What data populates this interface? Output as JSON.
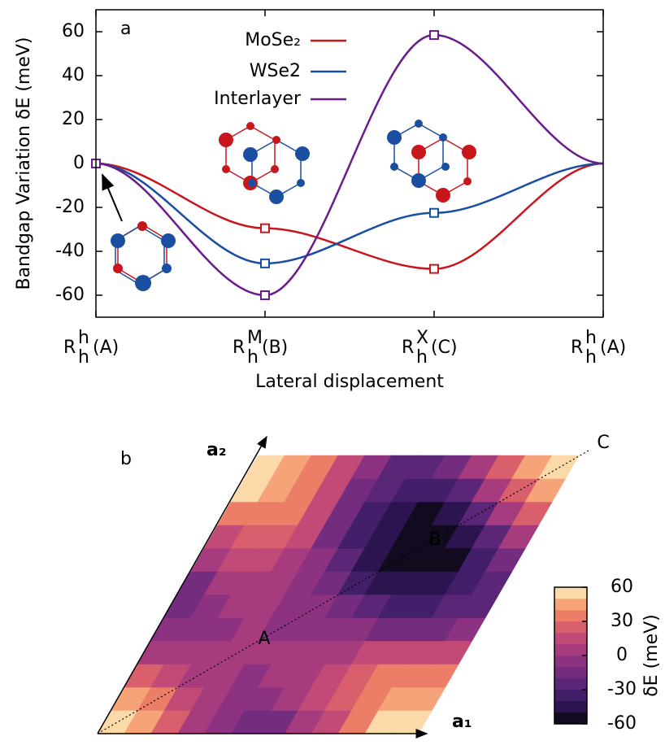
{
  "chart_data": [
    {
      "type": "line",
      "panel": "a",
      "ylabel": "Bandgap Variation δE (meV)",
      "xlabel": "Lateral displacement",
      "categories": [
        {
          "base": "R",
          "sup": "h",
          "sub": "h",
          "tail": "(A)"
        },
        {
          "base": "R",
          "sup": "M",
          "sub": "h",
          "tail": "(B)"
        },
        {
          "base": "R",
          "sup": "X",
          "sub": "h",
          "tail": "(C)"
        },
        {
          "base": "R",
          "sup": "h",
          "sub": "h",
          "tail": "(A)"
        }
      ],
      "series": [
        {
          "name": "MoSe₂",
          "color": "#c8161d",
          "values": [
            0,
            -29.5,
            -48,
            0
          ]
        },
        {
          "name": "WSe2",
          "color": "#1a4ea0",
          "values": [
            0,
            -45.5,
            -22.5,
            0
          ]
        },
        {
          "name": "Interlayer",
          "color": "#6a1b8c",
          "values": [
            0,
            -60,
            58.5,
            0
          ]
        }
      ],
      "ylim": [
        -70,
        70
      ],
      "yticks": [
        -60,
        -40,
        -20,
        0,
        20,
        40,
        60
      ],
      "legend": "top-center"
    },
    {
      "type": "contour",
      "panel": "b",
      "axis_labels": [
        "a₁",
        "a₂"
      ],
      "point_labels": [
        "A",
        "B",
        "C"
      ],
      "colorbar_label": "δE (meV)",
      "levels": [
        -60,
        -50,
        -40,
        -30,
        -20,
        -10,
        0,
        10,
        20,
        30,
        40,
        50,
        60
      ],
      "colors": [
        "#120a1f",
        "#2b1450",
        "#431f6a",
        "#5b2677",
        "#732c7e",
        "#8c3280",
        "#a63c7e",
        "#c24a77",
        "#da5f6d",
        "#ec7e67",
        "#f6a379",
        "#fbd9a8"
      ],
      "cticks": [
        -60,
        -30,
        0,
        30,
        60
      ],
      "z": [
        [
          55,
          44,
          27,
          8,
          -7,
          -14,
          -11,
          0,
          17,
          36,
          51,
          58
        ],
        [
          44,
          33,
          18,
          5,
          -4,
          -5,
          0,
          11,
          26,
          39,
          48,
          49
        ],
        [
          27,
          18,
          9,
          2,
          -1,
          0,
          5,
          14,
          23,
          30,
          33,
          32
        ],
        [
          8,
          5,
          2,
          1,
          0,
          1,
          4,
          7,
          10,
          11,
          12,
          11
        ],
        [
          -7,
          -4,
          -1,
          0,
          -1,
          -2,
          -5,
          -8,
          -11,
          -12,
          -11,
          -10
        ],
        [
          -14,
          -5,
          0,
          1,
          -2,
          -9,
          -18,
          -27,
          -32,
          -33,
          -30,
          -23
        ],
        [
          -11,
          0,
          5,
          4,
          -5,
          -18,
          -33,
          -44,
          -49,
          -48,
          -39,
          -26
        ],
        [
          0,
          11,
          14,
          7,
          -8,
          -27,
          -44,
          -55,
          -58,
          -51,
          -36,
          -17
        ],
        [
          17,
          26,
          23,
          10,
          -11,
          -32,
          -49,
          -58,
          -55,
          -42,
          -21,
          0
        ],
        [
          36,
          39,
          30,
          11,
          -12,
          -33,
          -48,
          -51,
          -42,
          -23,
          0,
          21
        ],
        [
          51,
          48,
          33,
          12,
          -11,
          -30,
          -39,
          -36,
          -21,
          0,
          23,
          42
        ],
        [
          58,
          49,
          32,
          11,
          -10,
          -23,
          -26,
          -17,
          0,
          21,
          42,
          55
        ]
      ]
    }
  ]
}
